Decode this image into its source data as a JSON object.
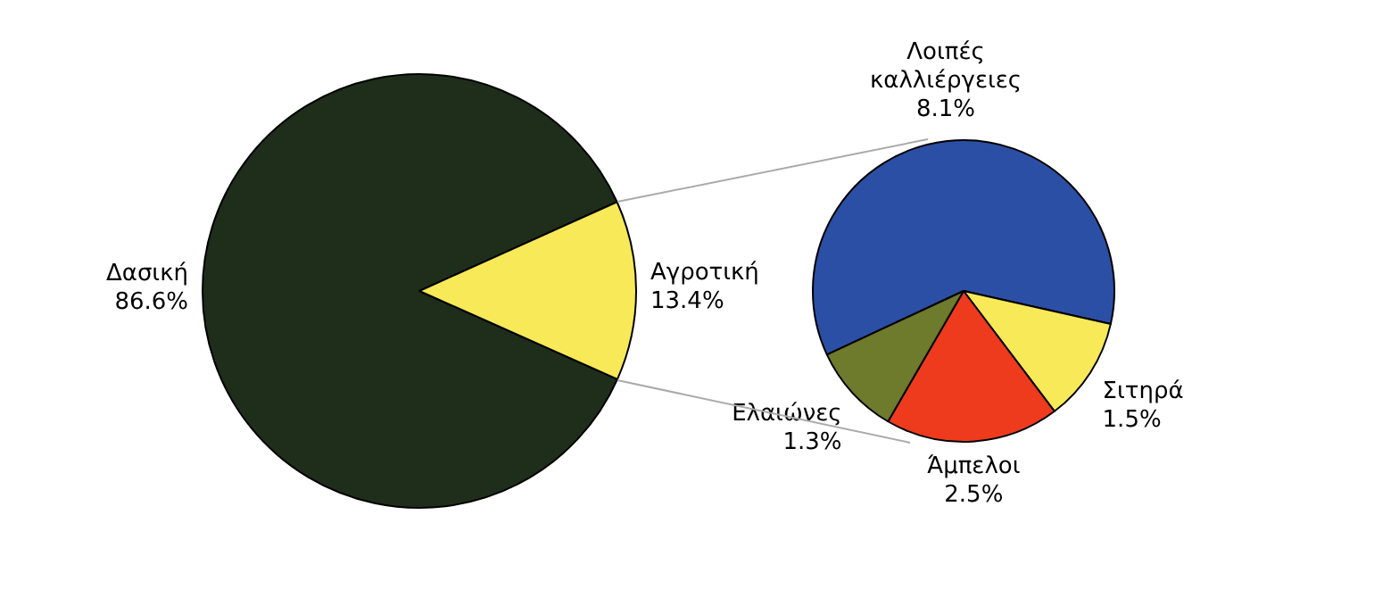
{
  "chart_data": [
    {
      "type": "pie",
      "categories": [
        "Δασική",
        "Αγροτική"
      ],
      "values": [
        86.6,
        13.4
      ],
      "colors": [
        "#1f2e1b",
        "#f7e957"
      ],
      "value_labels": [
        "86.6%",
        "13.4%"
      ]
    },
    {
      "type": "pie",
      "categories": [
        "Λοιπές καλλιέργειες",
        "Σιτηρά",
        "Άμπελοι",
        "Ελαιώνες"
      ],
      "values": [
        8.1,
        1.5,
        2.5,
        1.3
      ],
      "colors": [
        "#2c4fa6",
        "#f7e957",
        "#ee3b1d",
        "#6e7a2c"
      ],
      "value_labels": [
        "8.1%",
        "1.5%",
        "2.5%",
        "1.3%"
      ]
    }
  ]
}
